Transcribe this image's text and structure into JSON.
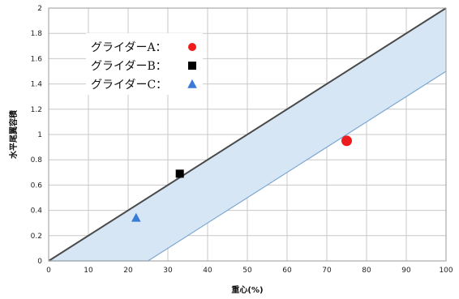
{
  "chart_data": {
    "type": "scatter",
    "title": "",
    "xlabel": "重心(%)",
    "ylabel": "水平尾翼容積",
    "xlim": [
      0,
      100
    ],
    "ylim": [
      0,
      2
    ],
    "xticks": [
      "0",
      "10",
      "20",
      "30",
      "40",
      "50",
      "60",
      "70",
      "80",
      "90",
      "100"
    ],
    "yticks": [
      "0",
      "0.2",
      "0.4",
      "0.6",
      "0.8",
      "1",
      "1.2",
      "1.4",
      "1.6",
      "1.8",
      "2"
    ],
    "grid": true,
    "legend_placement": "top-left",
    "band": {
      "upper": [
        [
          0,
          0
        ],
        [
          100,
          2
        ]
      ],
      "lower": [
        [
          0,
          0
        ],
        [
          25,
          0
        ],
        [
          100,
          1.5
        ]
      ],
      "fill_color": "#d6e6f5",
      "upper_line_color": "#4a4a4a",
      "lower_line_color": "#7fa8d2"
    },
    "series": [
      {
        "name": "グライダーA",
        "marker": "circle",
        "color": "#ee1c1c",
        "x": [
          75
        ],
        "y": [
          0.95
        ]
      },
      {
        "name": "グライダーB",
        "marker": "square",
        "color": "#000000",
        "x": [
          33
        ],
        "y": [
          0.69
        ]
      },
      {
        "name": "グライダーC",
        "marker": "triangle",
        "color": "#3a7bd5",
        "x": [
          22
        ],
        "y": [
          0.34
        ]
      }
    ]
  },
  "legend": {
    "items": [
      {
        "label": "グライダーA：",
        "marker": "circle",
        "color": "#ee1c1c"
      },
      {
        "label": "グライダーB：",
        "marker": "square",
        "color": "#000000"
      },
      {
        "label": "グライダーC：",
        "marker": "triangle",
        "color": "#3a7bd5"
      }
    ]
  }
}
